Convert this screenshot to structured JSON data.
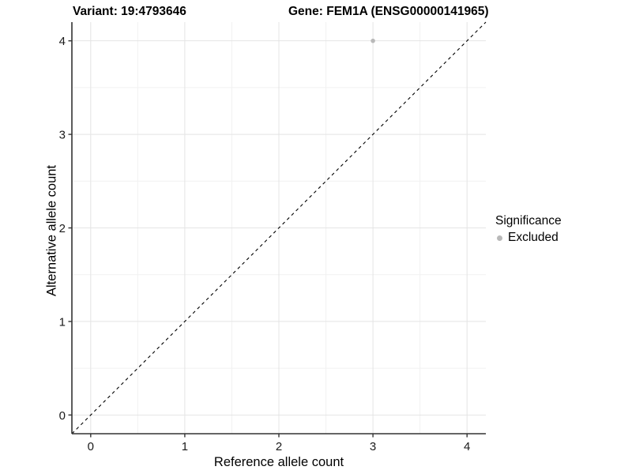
{
  "title": {
    "variant": "Variant: 19:4793646",
    "gene": "Gene: FEM1A (ENSG00000141965)"
  },
  "legend": {
    "title": "Significance",
    "items": [
      {
        "label": "Excluded",
        "color": "#b9b9b9"
      }
    ]
  },
  "chart_data": {
    "type": "scatter",
    "title": "Variant: 19:4793646  |  Gene: FEM1A (ENSG00000141965)",
    "xlabel": "Reference allele count",
    "ylabel": "Alternative allele count",
    "xlim": [
      -0.2,
      4.2
    ],
    "ylim": [
      -0.2,
      4.2
    ],
    "x_ticks": [
      0,
      1,
      2,
      3,
      4
    ],
    "y_ticks": [
      0,
      1,
      2,
      3,
      4
    ],
    "x_minor_ticks": [
      0.5,
      1.5,
      2.5,
      3.5
    ],
    "y_minor_ticks": [
      0.5,
      1.5,
      2.5,
      3.5
    ],
    "grid": "major-and-minor",
    "legend_position": "right",
    "series": [
      {
        "name": "Excluded",
        "color": "#b9b9b9",
        "points": [
          {
            "x": 3,
            "y": 4
          }
        ]
      }
    ],
    "reference_line": {
      "kind": "identity",
      "from": [
        -0.2,
        -0.2
      ],
      "to": [
        4.2,
        4.2
      ],
      "style": "dashed",
      "color": "#000000"
    }
  },
  "colors": {
    "background": "#ffffff",
    "axis_line": "#333333",
    "tick_mark": "#333333",
    "tick_label": "#1a1a1a",
    "grid_major": "#e4e4e4",
    "grid_minor": "#f1f1f1"
  }
}
